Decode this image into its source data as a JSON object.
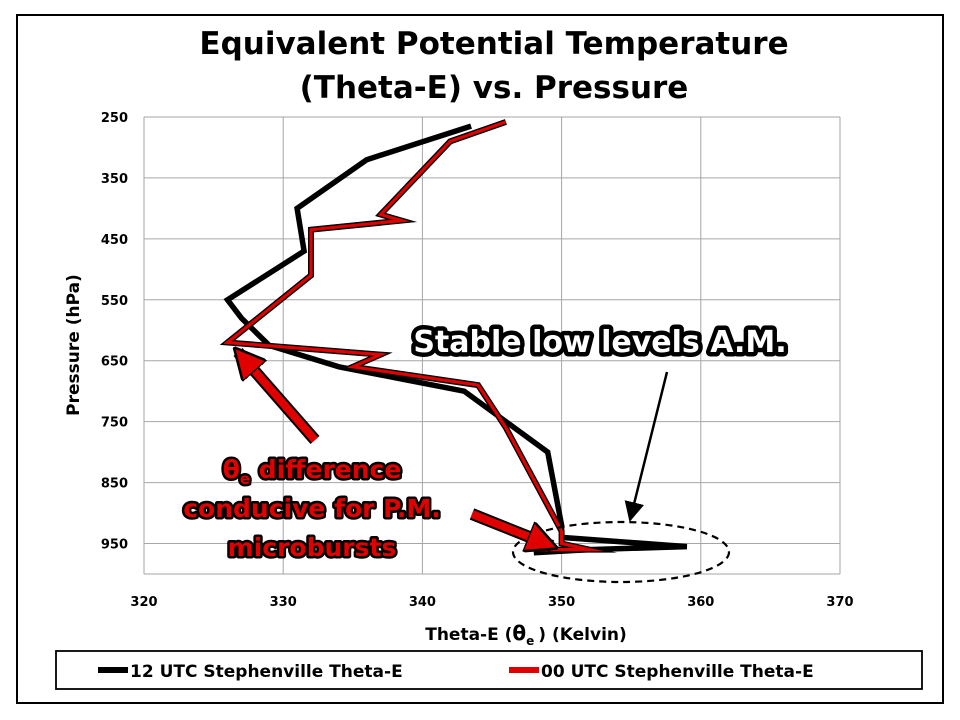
{
  "chart_data": {
    "type": "line",
    "title_lines": [
      "Equivalent Potential Temperature",
      "(Theta-E) vs. Pressure"
    ],
    "xlabel_prefix": "Theta-E (",
    "xlabel_symbol": "θ",
    "xlabel_sub": "e",
    "xlabel_suffix": ") (Kelvin)",
    "ylabel": "Pressure (hPa)",
    "xlim": [
      320,
      370
    ],
    "ylim": [
      250,
      1000
    ],
    "y_inverted": true,
    "x_ticks": [
      320,
      330,
      340,
      350,
      360,
      370
    ],
    "y_ticks": [
      250,
      350,
      450,
      550,
      650,
      750,
      850,
      950
    ],
    "grid": "vertical-and-horizontal",
    "legend_position": "bottom",
    "series": [
      {
        "name": "12 UTC Stephenville Theta-E",
        "color": "#000000",
        "points": [
          [
            343.5,
            265
          ],
          [
            336,
            320
          ],
          [
            331,
            400
          ],
          [
            331.5,
            470
          ],
          [
            326,
            550
          ],
          [
            327,
            580
          ],
          [
            329,
            625
          ],
          [
            334,
            660
          ],
          [
            343,
            700
          ],
          [
            349,
            800
          ],
          [
            350,
            920
          ],
          [
            350,
            940
          ],
          [
            359,
            955
          ],
          [
            352,
            960
          ],
          [
            348,
            965
          ]
        ]
      },
      {
        "name": "00 UTC Stephenville Theta-E",
        "color": "#e00000",
        "points": [
          [
            346,
            258
          ],
          [
            342,
            290
          ],
          [
            337,
            410
          ],
          [
            338.5,
            420
          ],
          [
            332,
            435
          ],
          [
            332,
            510
          ],
          [
            326,
            620
          ],
          [
            337,
            640
          ],
          [
            335,
            660
          ],
          [
            344,
            690
          ],
          [
            346,
            760
          ],
          [
            350,
            930
          ],
          [
            350,
            950
          ],
          [
            352,
            960
          ],
          [
            348,
            960
          ]
        ]
      }
    ],
    "annotations": {
      "stable": "Stable low levels A.M.",
      "theta_symbol": "θ",
      "theta_sub": "e",
      "difference_rest": " difference",
      "line2": "conducive for P.M.",
      "line3": "microbursts"
    }
  }
}
